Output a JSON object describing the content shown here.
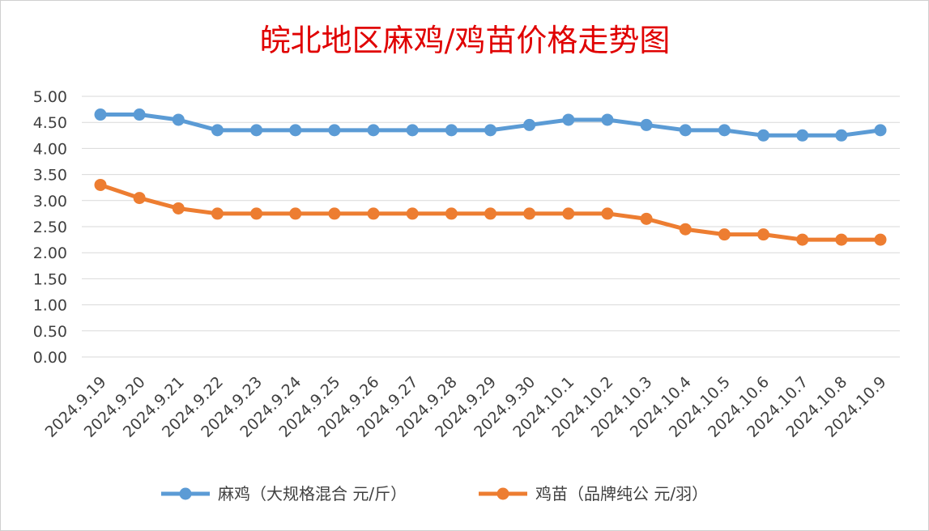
{
  "chart_data": {
    "type": "line",
    "title": "皖北地区麻鸡/鸡苗价格走势图",
    "categories": [
      "2024.9.19",
      "2024.9.20",
      "2024.9.21",
      "2024.9.22",
      "2024.9.23",
      "2024.9.24",
      "2024.9.25",
      "2024.9.26",
      "2024.9.27",
      "2024.9.28",
      "2024.9.29",
      "2024.9.30",
      "2024.10.1",
      "2024.10.2",
      "2024.10.3",
      "2024.10.4",
      "2024.10.5",
      "2024.10.6",
      "2024.10.7",
      "2024.10.8",
      "2024.10.9"
    ],
    "y_ticks": [
      "0.00",
      "0.50",
      "1.00",
      "1.50",
      "2.00",
      "2.50",
      "3.00",
      "3.50",
      "4.00",
      "4.50",
      "5.00"
    ],
    "ylim": [
      0,
      5
    ],
    "grid": true,
    "legend_position": "bottom",
    "series": [
      {
        "name": "麻鸡（大规格混合 元/斤）",
        "color": "#5b9bd5",
        "values": [
          4.65,
          4.65,
          4.55,
          4.35,
          4.35,
          4.35,
          4.35,
          4.35,
          4.35,
          4.35,
          4.35,
          4.45,
          4.55,
          4.55,
          4.45,
          4.35,
          4.35,
          4.25,
          4.25,
          4.25,
          4.35
        ]
      },
      {
        "name": "鸡苗（品牌纯公 元/羽）",
        "color": "#ed7d31",
        "values": [
          3.3,
          3.05,
          2.85,
          2.75,
          2.75,
          2.75,
          2.75,
          2.75,
          2.75,
          2.75,
          2.75,
          2.75,
          2.75,
          2.75,
          2.65,
          2.45,
          2.35,
          2.35,
          2.25,
          2.25,
          2.25
        ]
      }
    ]
  }
}
